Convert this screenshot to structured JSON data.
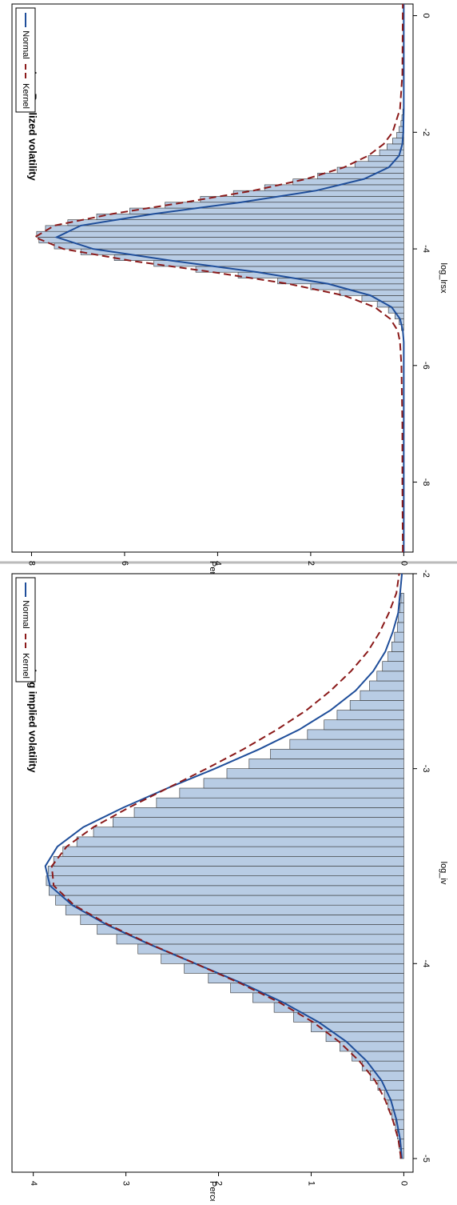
{
  "chart_data": [
    {
      "type": "histogram",
      "title": "Log Realized volatility",
      "xlabel": "log_lrsx",
      "ylabel": "Percent",
      "bins": [
        -5.4,
        -5.3,
        -5.2,
        -5.1,
        -5.0,
        -4.9,
        -4.8,
        -4.7,
        -4.6,
        -4.5,
        -4.4,
        -4.3,
        -4.2,
        -4.1,
        -4.0,
        -3.9,
        -3.8,
        -3.7,
        -3.6,
        -3.5,
        -3.4,
        -3.3,
        -3.2,
        -3.1,
        -3.0,
        -2.9,
        -2.8,
        -2.7,
        -2.6,
        -2.5,
        -2.4,
        -2.3,
        -2.2,
        -2.1,
        -2.0,
        -1.9,
        -1.8,
        -1.7,
        -1.6
      ],
      "values": [
        0.05,
        0.1,
        0.19,
        0.33,
        0.57,
        0.9,
        1.38,
        2.0,
        2.71,
        3.56,
        4.47,
        5.37,
        6.22,
        6.94,
        7.51,
        7.84,
        7.89,
        7.7,
        7.22,
        6.6,
        5.89,
        5.13,
        4.37,
        3.66,
        2.99,
        2.38,
        1.85,
        1.43,
        1.05,
        0.76,
        0.52,
        0.36,
        0.24,
        0.15,
        0.1,
        0.06,
        0.04,
        0.02
      ],
      "color": "#b8cce4",
      "series": [
        {
          "name": "Normal",
          "color": "#1f4e9a",
          "style": "solid",
          "x": [
            -9.2,
            -6.0,
            -5.6,
            -5.4,
            -5.2,
            -5.0,
            -4.8,
            -4.6,
            -4.4,
            -4.2,
            -4.0,
            -3.8,
            -3.6,
            -3.4,
            -3.2,
            -3.0,
            -2.8,
            -2.6,
            -2.4,
            -2.2,
            -2.0,
            -1.6,
            0.2
          ],
          "values": [
            0,
            0,
            0,
            0.02,
            0.08,
            0.26,
            0.71,
            1.62,
            3.13,
            5.01,
            6.68,
            7.46,
            6.94,
            5.38,
            3.49,
            1.88,
            0.85,
            0.32,
            0.1,
            0.03,
            0.01,
            0,
            0
          ]
        },
        {
          "name": "Kernel",
          "color": "#8b1a1a",
          "style": "dashed",
          "x": [
            -9.2,
            -8.0,
            -7.0,
            -6.0,
            -5.6,
            -5.4,
            -5.2,
            -5.0,
            -4.8,
            -4.6,
            -4.4,
            -4.2,
            -4.0,
            -3.8,
            -3.6,
            -3.4,
            -3.2,
            -3.0,
            -2.8,
            -2.6,
            -2.4,
            -2.2,
            -2.0,
            -1.6,
            -1.0,
            0.2
          ],
          "values": [
            0.02,
            0.03,
            0.03,
            0.05,
            0.08,
            0.13,
            0.29,
            0.62,
            1.28,
            2.47,
            4.09,
            5.89,
            7.32,
            7.93,
            7.51,
            6.27,
            4.7,
            3.23,
            2.09,
            1.28,
            0.76,
            0.43,
            0.24,
            0.08,
            0.03,
            0.02
          ]
        }
      ],
      "xlim": [
        -9.2,
        0.2
      ],
      "xticks": [
        -8,
        -6,
        -4,
        -2,
        0
      ],
      "ylim": [
        -0.2,
        8.42
      ],
      "yticks": [
        0,
        2,
        4,
        6,
        8
      ]
    },
    {
      "type": "histogram",
      "title": "Log implied volatility",
      "xlabel": "log_iv",
      "ylabel": "Percent",
      "bins": [
        -5.0,
        -4.95,
        -4.9,
        -4.85,
        -4.8,
        -4.75,
        -4.7,
        -4.65,
        -4.6,
        -4.55,
        -4.5,
        -4.45,
        -4.4,
        -4.35,
        -4.3,
        -4.25,
        -4.2,
        -4.15,
        -4.1,
        -4.05,
        -4.0,
        -3.95,
        -3.9,
        -3.85,
        -3.8,
        -3.75,
        -3.7,
        -3.65,
        -3.6,
        -3.55,
        -3.5,
        -3.45,
        -3.4,
        -3.35,
        -3.3,
        -3.25,
        -3.2,
        -3.15,
        -3.1,
        -3.05,
        -3.0,
        -2.95,
        -2.9,
        -2.85,
        -2.8,
        -2.75,
        -2.7,
        -2.65,
        -2.6,
        -2.55,
        -2.5,
        -2.45,
        -2.4,
        -2.35,
        -2.3,
        -2.25,
        -2.2,
        -2.15,
        -2.1
      ],
      "values": [
        0.04,
        0.05,
        0.07,
        0.09,
        0.13,
        0.17,
        0.21,
        0.28,
        0.36,
        0.45,
        0.56,
        0.69,
        0.84,
        1.0,
        1.19,
        1.4,
        1.63,
        1.87,
        2.11,
        2.37,
        2.62,
        2.87,
        3.1,
        3.31,
        3.49,
        3.65,
        3.76,
        3.83,
        3.86,
        3.84,
        3.78,
        3.68,
        3.53,
        3.35,
        3.14,
        2.91,
        2.67,
        2.42,
        2.16,
        1.91,
        1.67,
        1.44,
        1.23,
        1.04,
        0.86,
        0.72,
        0.58,
        0.47,
        0.37,
        0.29,
        0.23,
        0.17,
        0.13,
        0.1,
        0.07,
        0.06,
        0.04,
        0.03
      ],
      "color": "#b8cce4",
      "series": [
        {
          "name": "Normal",
          "color": "#1f4e9a",
          "style": "solid",
          "x": [
            -5.0,
            -4.9,
            -4.8,
            -4.7,
            -4.6,
            -4.5,
            -4.4,
            -4.3,
            -4.2,
            -4.1,
            -4.0,
            -3.9,
            -3.8,
            -3.7,
            -3.6,
            -3.5,
            -3.4,
            -3.3,
            -3.2,
            -3.1,
            -3.0,
            -2.9,
            -2.8,
            -2.7,
            -2.6,
            -2.5,
            -2.4,
            -2.3,
            -2.2,
            -2.1,
            -2.0
          ],
          "values": [
            0.02,
            0.04,
            0.08,
            0.14,
            0.24,
            0.4,
            0.62,
            0.92,
            1.3,
            1.75,
            2.25,
            2.75,
            3.21,
            3.58,
            3.82,
            3.87,
            3.74,
            3.46,
            3.03,
            2.55,
            2.04,
            1.56,
            1.13,
            0.79,
            0.52,
            0.33,
            0.2,
            0.12,
            0.06,
            0.04,
            0.02
          ]
        },
        {
          "name": "Kernel",
          "color": "#8b1a1a",
          "style": "dashed",
          "x": [
            -5.0,
            -4.9,
            -4.8,
            -4.7,
            -4.6,
            -4.5,
            -4.4,
            -4.3,
            -4.2,
            -4.1,
            -4.0,
            -3.9,
            -3.8,
            -3.7,
            -3.6,
            -3.5,
            -3.4,
            -3.3,
            -3.2,
            -3.1,
            -3.0,
            -2.9,
            -2.8,
            -2.7,
            -2.6,
            -2.5,
            -2.4,
            -2.3,
            -2.2,
            -2.1,
            -2.0
          ],
          "values": [
            0.03,
            0.06,
            0.12,
            0.2,
            0.31,
            0.48,
            0.7,
            0.98,
            1.34,
            1.77,
            2.25,
            2.74,
            3.19,
            3.56,
            3.78,
            3.8,
            3.64,
            3.35,
            2.97,
            2.55,
            2.13,
            1.73,
            1.37,
            1.05,
            0.79,
            0.57,
            0.39,
            0.26,
            0.16,
            0.08,
            0.05
          ]
        }
      ],
      "xlim": [
        -5.07,
        -2.0
      ],
      "xticks": [
        -5,
        -4,
        -3,
        -2
      ],
      "ylim": [
        -0.1,
        4.23
      ],
      "yticks": [
        0,
        1,
        2,
        3,
        4
      ]
    }
  ]
}
